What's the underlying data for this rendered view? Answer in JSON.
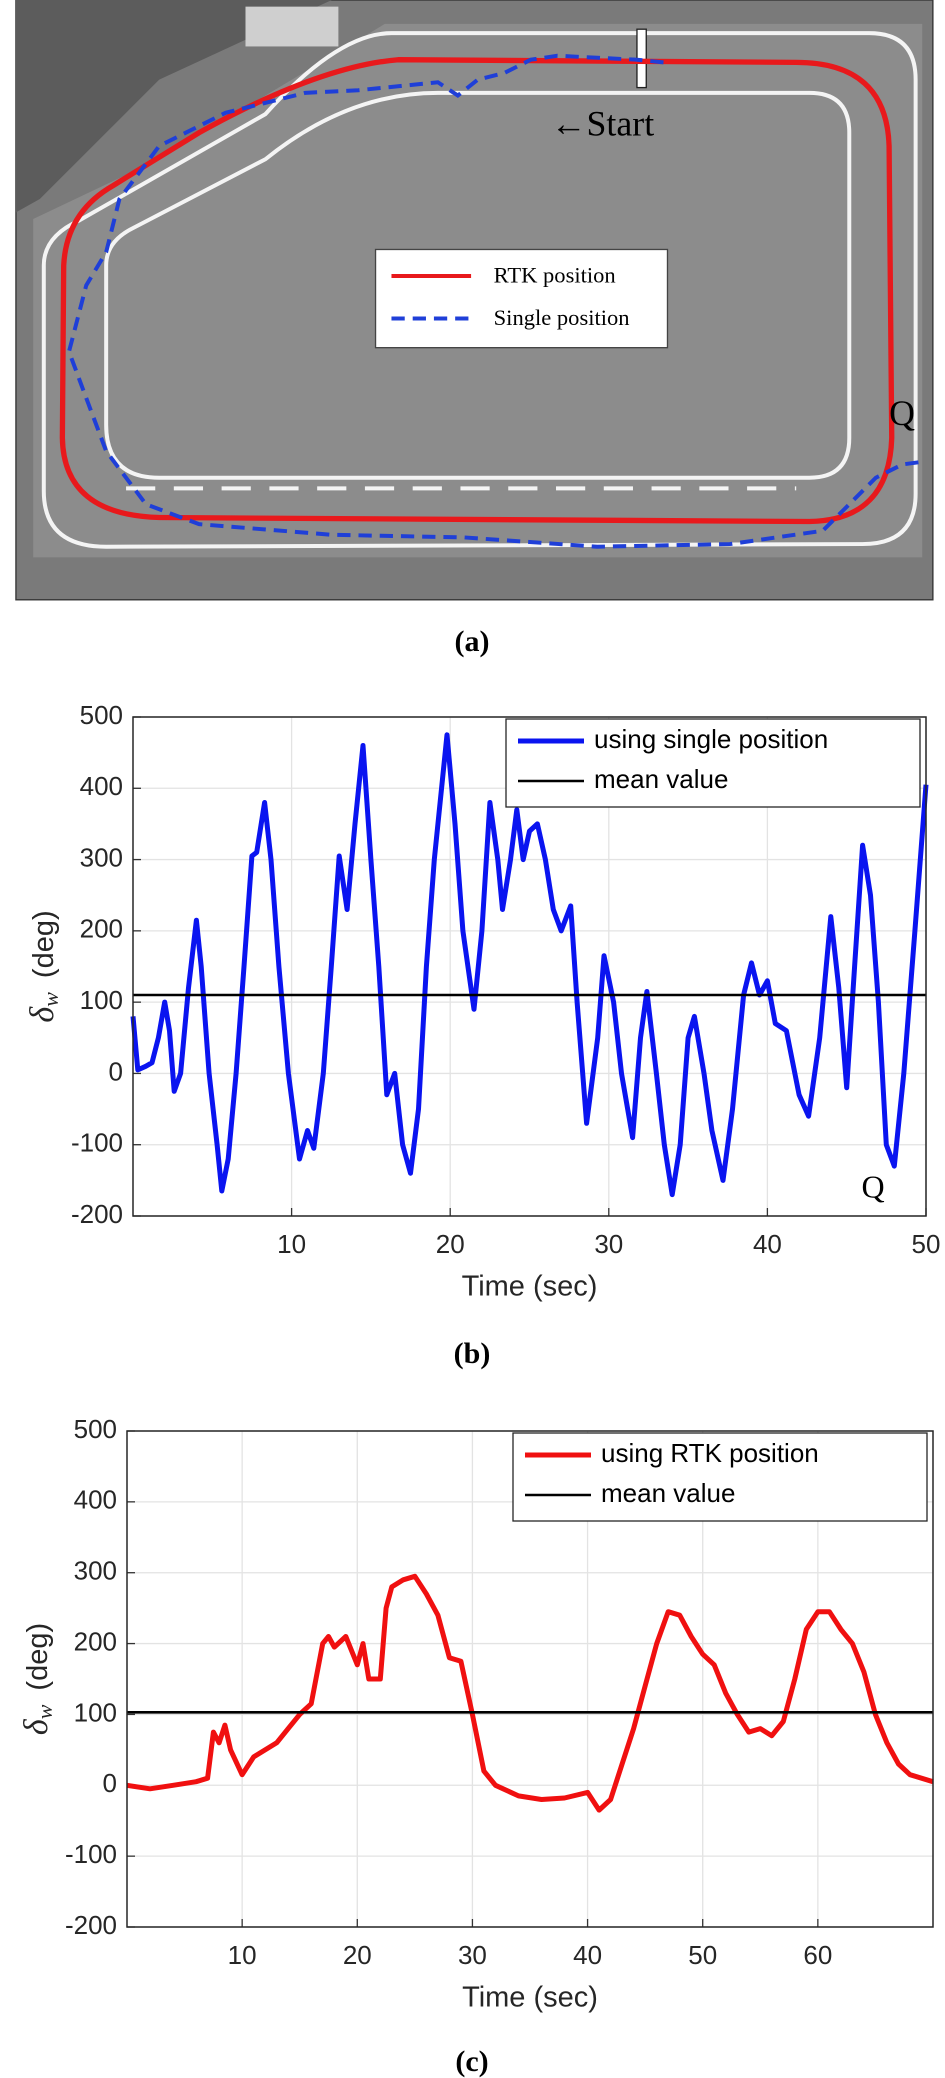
{
  "chart_data": [
    {
      "type": "image",
      "caption": "(a)",
      "series": [
        {
          "name": "RTK position",
          "color": "#e8191c"
        },
        {
          "name": "Single position",
          "color": "#1f3fd8"
        }
      ],
      "annotations": [
        "←Start",
        "Q"
      ]
    },
    {
      "type": "line",
      "caption": "(b)",
      "xlabel": "Time (sec)",
      "ylabel_symbol": "δ",
      "ylabel_subscript": "w",
      "ylabel_units": "(deg)",
      "xlim": [
        0,
        50
      ],
      "xticks": [
        10,
        20,
        30,
        40,
        50
      ],
      "ylim": [
        -200,
        500
      ],
      "yticks": [
        -200,
        -100,
        0,
        100,
        200,
        300,
        400,
        500
      ],
      "grid": true,
      "legend": "upper right",
      "annotations": [
        "Q"
      ],
      "series": [
        {
          "name": "using single position",
          "color": "#0a14f0",
          "x": [
            0,
            0.3,
            0.8,
            1.2,
            1.6,
            2,
            2.3,
            2.6,
            3,
            3.5,
            4,
            4.3,
            4.8,
            5.3,
            5.6,
            6,
            6.5,
            7,
            7.5,
            7.8,
            8.3,
            8.7,
            9.2,
            9.8,
            10.5,
            11,
            11.4,
            12,
            12.5,
            13,
            13.5,
            14,
            14.5,
            15,
            15.5,
            16,
            16.5,
            17,
            17.5,
            18,
            18.5,
            19,
            19.8,
            20.3,
            20.8,
            21.5,
            22,
            22.5,
            23,
            23.3,
            23.8,
            24.2,
            24.6,
            25,
            25.5,
            26,
            26.5,
            27,
            27.6,
            28,
            28.6,
            29.3,
            29.7,
            30.3,
            30.8,
            31.5,
            32,
            32.4,
            33,
            33.5,
            34,
            34.5,
            35,
            35.4,
            36,
            36.5,
            37.2,
            37.8,
            38.5,
            39,
            39.5,
            40,
            40.5,
            41.2,
            42,
            42.6,
            43.3,
            44,
            44.5,
            45,
            45.5,
            46,
            46.5,
            47,
            47.5,
            48,
            48.6,
            49.3,
            50
          ],
          "values": [
            80,
            5,
            10,
            15,
            50,
            100,
            60,
            -25,
            0,
            120,
            215,
            150,
            0,
            -100,
            -165,
            -120,
            0,
            150,
            305,
            310,
            380,
            300,
            150,
            0,
            -120,
            -80,
            -105,
            0,
            150,
            305,
            230,
            350,
            460,
            300,
            150,
            -30,
            0,
            -100,
            -140,
            -50,
            150,
            300,
            475,
            350,
            200,
            90,
            200,
            380,
            300,
            230,
            300,
            370,
            300,
            340,
            350,
            300,
            230,
            200,
            235,
            100,
            -70,
            50,
            165,
            100,
            0,
            -90,
            50,
            115,
            0,
            -100,
            -170,
            -100,
            50,
            80,
            0,
            -80,
            -150,
            -50,
            110,
            155,
            110,
            130,
            70,
            60,
            -30,
            -60,
            50,
            220,
            120,
            -20,
            150,
            320,
            250,
            100,
            -100,
            -130,
            0,
            200,
            405
          ]
        },
        {
          "name": "mean value",
          "color": "#000000",
          "x": [
            0,
            50
          ],
          "values": [
            110,
            110
          ]
        }
      ]
    },
    {
      "type": "line",
      "caption": "(c)",
      "xlabel": "Time (sec)",
      "ylabel_symbol": "δ",
      "ylabel_subscript": "w",
      "ylabel_units": "(deg)",
      "xlim": [
        0,
        70
      ],
      "xticks": [
        10,
        20,
        30,
        40,
        50,
        60
      ],
      "ylim": [
        -200,
        500
      ],
      "yticks": [
        -200,
        -100,
        0,
        100,
        200,
        300,
        400,
        500
      ],
      "grid": true,
      "legend": "upper right",
      "series": [
        {
          "name": "using RTK position",
          "color": "#f01010",
          "x": [
            0,
            2,
            4,
            6,
            7,
            7.5,
            8,
            8.5,
            9,
            10,
            11,
            13,
            14,
            15,
            16,
            17,
            17.5,
            18,
            19,
            20,
            20.5,
            21,
            22,
            22.5,
            23,
            24,
            25,
            26,
            27,
            28,
            29,
            30,
            31,
            32,
            34,
            36,
            38,
            40,
            41,
            42,
            43,
            44,
            45,
            46,
            47,
            48,
            49,
            50,
            51,
            52,
            53,
            54,
            55,
            56,
            57,
            58,
            59,
            60,
            61,
            62,
            63,
            64,
            65,
            66,
            67,
            68,
            70
          ],
          "values": [
            0,
            -5,
            0,
            5,
            10,
            75,
            60,
            85,
            50,
            15,
            40,
            60,
            80,
            100,
            115,
            200,
            210,
            195,
            210,
            170,
            200,
            150,
            150,
            250,
            280,
            290,
            295,
            270,
            240,
            180,
            175,
            100,
            20,
            0,
            -15,
            -20,
            -18,
            -10,
            -35,
            -20,
            30,
            80,
            140,
            200,
            245,
            240,
            210,
            185,
            170,
            130,
            100,
            75,
            80,
            70,
            90,
            150,
            220,
            245,
            245,
            220,
            200,
            160,
            100,
            60,
            30,
            15,
            5
          ]
        },
        {
          "name": "mean value",
          "color": "#000000",
          "x": [
            0,
            70
          ],
          "values": [
            103,
            103
          ]
        }
      ]
    }
  ]
}
